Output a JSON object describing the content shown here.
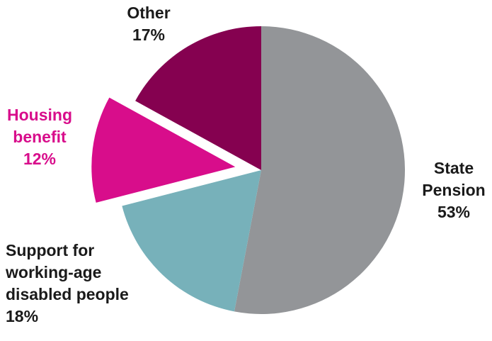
{
  "chart_data": {
    "type": "pie",
    "title": "",
    "start_angle_deg": 0,
    "direction": "clockwise",
    "slices": [
      {
        "label_lines": [
          "State",
          "Pension"
        ],
        "percent_label": "53%",
        "value": 53,
        "color": "#939598",
        "exploded": false,
        "label_color": "#1a1a1a"
      },
      {
        "label_lines": [
          "Support for",
          "working-age",
          "disabled people"
        ],
        "percent_label": "18%",
        "value": 18,
        "color": "#77b1ba",
        "exploded": false,
        "label_color": "#1a1a1a"
      },
      {
        "label_lines": [
          "Housing",
          "benefit"
        ],
        "percent_label": "12%",
        "value": 12,
        "color": "#d80d8b",
        "exploded": true,
        "label_color": "#d80d8b"
      },
      {
        "label_lines": [
          "Other"
        ],
        "percent_label": "17%",
        "value": 17,
        "color": "#850150",
        "exploded": false,
        "label_color": "#1a1a1a"
      }
    ]
  }
}
